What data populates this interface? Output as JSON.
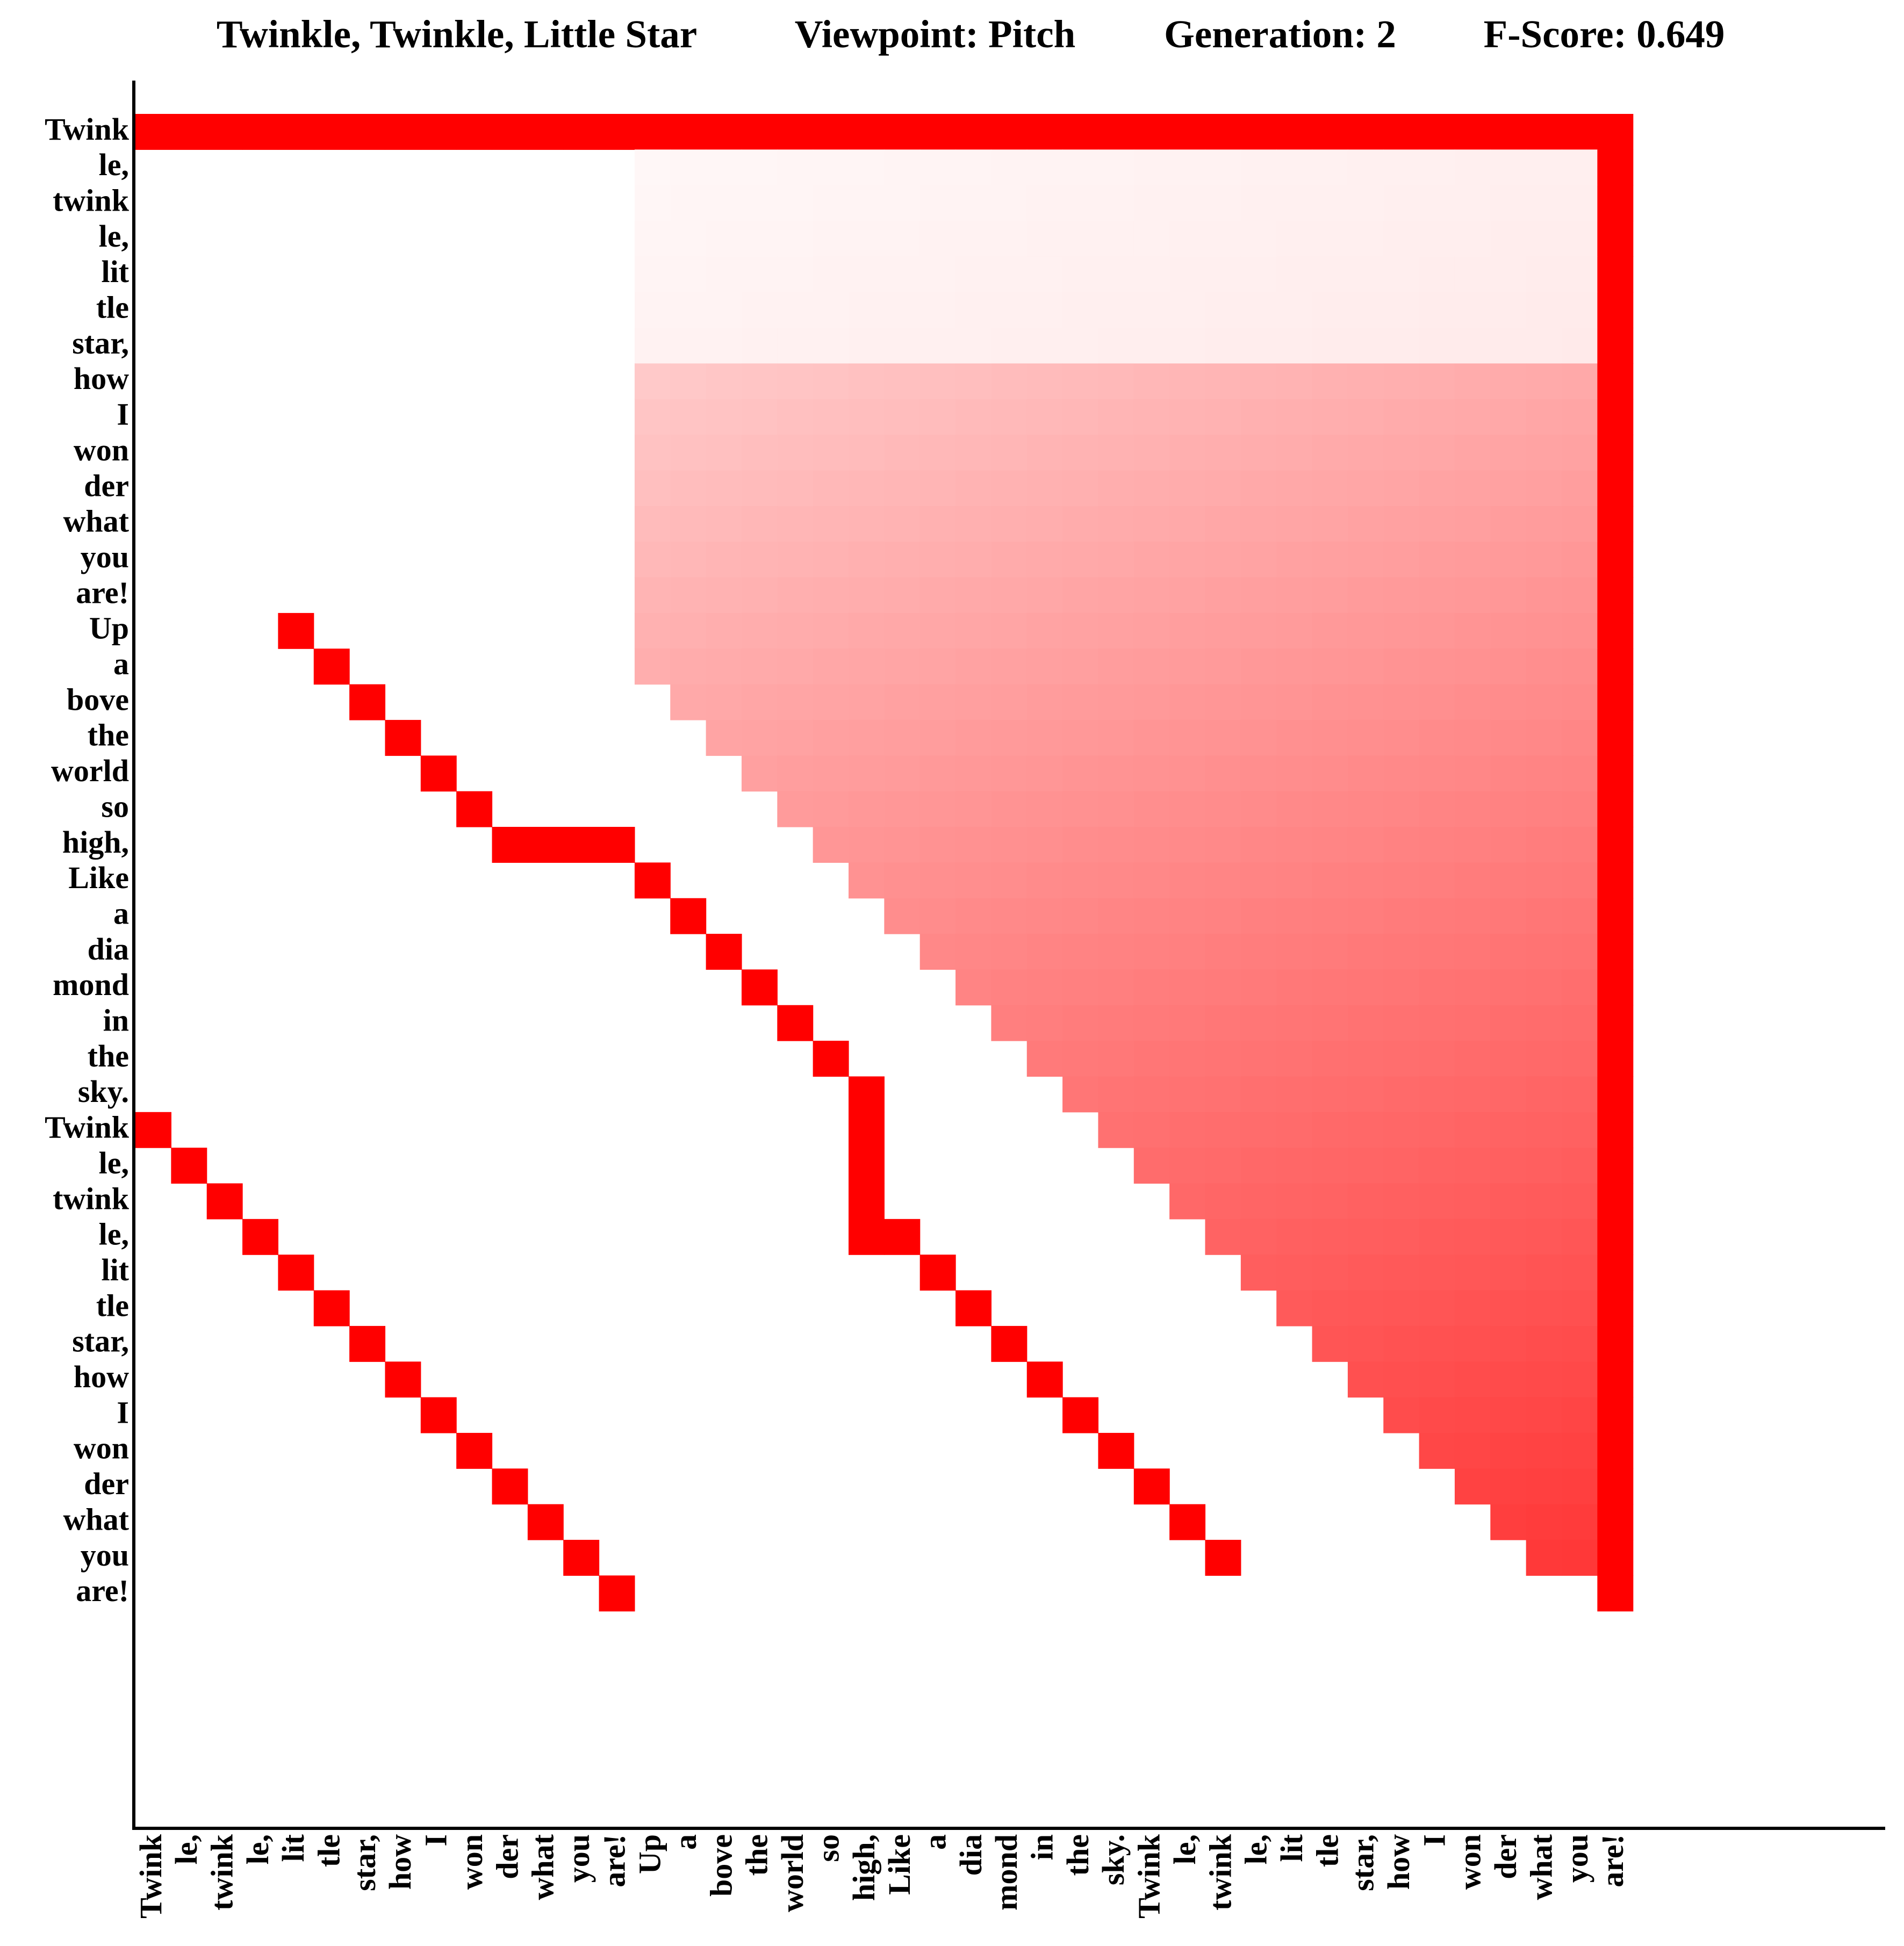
{
  "header": {
    "song_title": "Twinkle, Twinkle, Little Star",
    "viewpoint": "Viewpoint: Pitch",
    "generation": "Generation: 2",
    "fscore": "F-Score: 0.649"
  },
  "colors": {
    "cell_max": "#ff0000",
    "cell_min": "#ffffff",
    "axis": "#000000"
  },
  "chart_data": {
    "type": "heatmap",
    "title": "Twinkle, Twinkle, Little Star",
    "xlabel": "",
    "ylabel": "",
    "grid": false,
    "value_range": [
      0,
      1
    ],
    "syllables": [
      "Twink",
      "le,",
      "twink",
      "le,",
      "lit",
      "tle",
      "star,",
      "how",
      "I",
      "won",
      "der",
      "what",
      "you",
      "are!",
      "Up",
      "a",
      "bove",
      "the",
      "world",
      "so",
      "high,",
      "Like",
      "a",
      "dia",
      "mond",
      "in",
      "the",
      "sky.",
      "Twink",
      "le,",
      "twink",
      "le,",
      "lit",
      "tle",
      "star,",
      "how",
      "I",
      "won",
      "der",
      "what",
      "you",
      "are!"
    ],
    "x_tick_labels": [
      "Twink",
      "le,",
      "twink",
      "le,",
      "lit",
      "tle",
      "star,",
      "how",
      "I",
      "won",
      "der",
      "what",
      "you",
      "are!",
      "Up",
      "a",
      "bove",
      "the",
      "world",
      "so",
      "high,",
      "Like",
      "a",
      "dia",
      "mond",
      "in",
      "the",
      "sky.",
      "Twink",
      "le,",
      "twink",
      "le,",
      "lit",
      "tle",
      "star,",
      "how",
      "I",
      "won",
      "der",
      "what",
      "you",
      "are!"
    ],
    "y_tick_labels": [
      "Twink",
      "le,",
      "twink",
      "le,",
      "lit",
      "tle",
      "star,",
      "how",
      "I",
      "won",
      "der",
      "what",
      "you",
      "are!",
      "Up",
      "a",
      "bove",
      "the",
      "world",
      "so",
      "high,",
      "Like",
      "a",
      "dia",
      "mond",
      "in",
      "the",
      "sky.",
      "Twink",
      "le,",
      "twink",
      "le,",
      "lit",
      "tle",
      "star,",
      "how",
      "I",
      "won",
      "der",
      "what",
      "you",
      "are!"
    ],
    "full_intensity_cells": [
      [
        0,
        0
      ],
      [
        0,
        1
      ],
      [
        0,
        2
      ],
      [
        0,
        3
      ],
      [
        0,
        4
      ],
      [
        0,
        5
      ],
      [
        0,
        6
      ],
      [
        0,
        7
      ],
      [
        0,
        8
      ],
      [
        0,
        9
      ],
      [
        0,
        10
      ],
      [
        0,
        11
      ],
      [
        0,
        12
      ],
      [
        0,
        13
      ],
      [
        0,
        14
      ],
      [
        0,
        15
      ],
      [
        0,
        16
      ],
      [
        0,
        17
      ],
      [
        0,
        18
      ],
      [
        0,
        19
      ],
      [
        0,
        20
      ],
      [
        0,
        21
      ],
      [
        0,
        22
      ],
      [
        0,
        23
      ],
      [
        0,
        24
      ],
      [
        0,
        25
      ],
      [
        0,
        26
      ],
      [
        0,
        27
      ],
      [
        0,
        28
      ],
      [
        0,
        29
      ],
      [
        0,
        30
      ],
      [
        0,
        31
      ],
      [
        0,
        32
      ],
      [
        0,
        33
      ],
      [
        0,
        34
      ],
      [
        0,
        35
      ],
      [
        0,
        36
      ],
      [
        0,
        37
      ],
      [
        0,
        38
      ],
      [
        0,
        39
      ],
      [
        0,
        40
      ],
      [
        0,
        41
      ],
      [
        1,
        41
      ],
      [
        2,
        41
      ],
      [
        3,
        41
      ],
      [
        4,
        41
      ],
      [
        5,
        41
      ],
      [
        6,
        41
      ],
      [
        7,
        41
      ],
      [
        8,
        41
      ],
      [
        9,
        41
      ],
      [
        10,
        41
      ],
      [
        11,
        41
      ],
      [
        12,
        41
      ],
      [
        13,
        41
      ],
      [
        14,
        41
      ],
      [
        15,
        41
      ],
      [
        16,
        41
      ],
      [
        17,
        41
      ],
      [
        18,
        41
      ],
      [
        19,
        41
      ],
      [
        20,
        41
      ],
      [
        21,
        41
      ],
      [
        22,
        41
      ],
      [
        23,
        41
      ],
      [
        24,
        41
      ],
      [
        25,
        41
      ],
      [
        26,
        41
      ],
      [
        27,
        41
      ],
      [
        28,
        41
      ],
      [
        29,
        41
      ],
      [
        30,
        41
      ],
      [
        31,
        41
      ],
      [
        32,
        41
      ],
      [
        33,
        41
      ],
      [
        34,
        41
      ],
      [
        35,
        41
      ],
      [
        36,
        41
      ],
      [
        37,
        41
      ],
      [
        38,
        41
      ],
      [
        39,
        41
      ],
      [
        40,
        41
      ],
      [
        41,
        41
      ],
      [
        28,
        0
      ],
      [
        29,
        1
      ],
      [
        30,
        2
      ],
      [
        31,
        3
      ],
      [
        32,
        4
      ],
      [
        33,
        5
      ],
      [
        34,
        6
      ],
      [
        35,
        7
      ],
      [
        36,
        8
      ],
      [
        37,
        9
      ],
      [
        38,
        10
      ],
      [
        39,
        11
      ],
      [
        40,
        12
      ],
      [
        41,
        13
      ],
      [
        14,
        4
      ],
      [
        15,
        5
      ],
      [
        16,
        6
      ],
      [
        17,
        7
      ],
      [
        18,
        8
      ],
      [
        19,
        9
      ],
      [
        20,
        10
      ],
      [
        20,
        11
      ],
      [
        20,
        12
      ],
      [
        20,
        13
      ],
      [
        21,
        14
      ],
      [
        22,
        15
      ],
      [
        23,
        16
      ],
      [
        24,
        17
      ],
      [
        25,
        18
      ],
      [
        26,
        19
      ],
      [
        27,
        20
      ],
      [
        28,
        20
      ],
      [
        29,
        20
      ],
      [
        30,
        20
      ],
      [
        31,
        20
      ],
      [
        31,
        21
      ],
      [
        32,
        22
      ],
      [
        33,
        23
      ],
      [
        34,
        24
      ],
      [
        35,
        25
      ],
      [
        36,
        26
      ],
      [
        37,
        27
      ],
      [
        38,
        28
      ],
      [
        39,
        29
      ],
      [
        40,
        30
      ]
    ],
    "shaded_region": "upper-right triangle above the main diagonal; intensity rises from near 0 at the top rows to about 0.8 toward the lower-right",
    "shaded_lower_bound_by_column": [
      [
        14,
        0
      ],
      [
        15,
        0
      ],
      [
        16,
        0
      ],
      [
        17,
        0
      ],
      [
        18,
        0
      ],
      [
        19,
        0
      ],
      [
        20,
        0
      ],
      [
        21,
        0
      ],
      [
        22,
        0
      ],
      [
        23,
        0
      ],
      [
        24,
        0
      ],
      [
        25,
        0
      ],
      [
        26,
        0
      ],
      [
        27,
        0
      ],
      [
        28,
        0
      ],
      [
        29,
        0
      ],
      [
        30,
        0
      ],
      [
        31,
        0
      ],
      [
        32,
        0
      ],
      [
        33,
        0
      ],
      [
        34,
        0
      ],
      [
        35,
        0
      ],
      [
        36,
        0
      ],
      [
        37,
        0
      ],
      [
        38,
        0
      ],
      [
        39,
        0
      ],
      [
        40,
        0
      ],
      [
        41,
        0
      ]
    ]
  }
}
